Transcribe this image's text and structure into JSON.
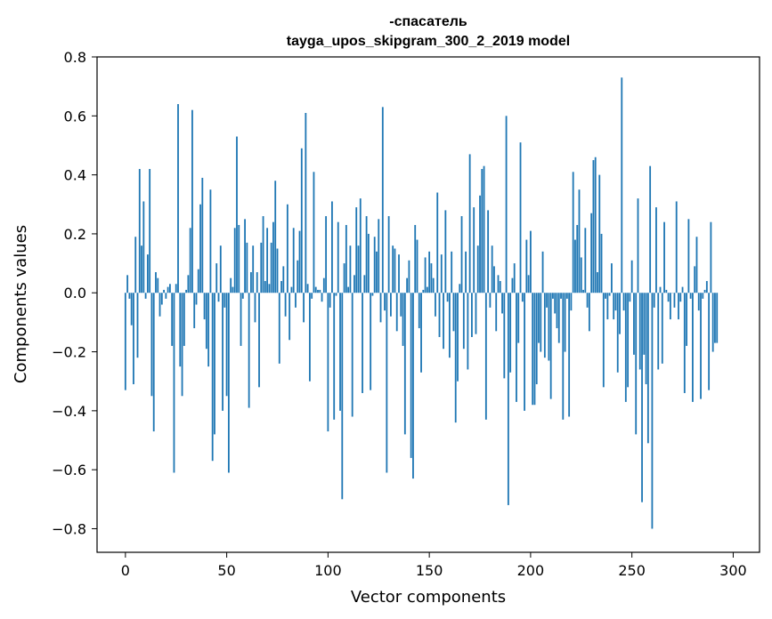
{
  "chart_data": {
    "type": "bar",
    "title": "-спасатель",
    "subtitle": "tayga_upos_skipgram_300_2_2019 model",
    "xlabel": "Vector components",
    "ylabel": "Components values",
    "xlim": [
      -14,
      313
    ],
    "ylim": [
      -0.88,
      0.8
    ],
    "xticks": [
      0,
      50,
      100,
      150,
      200,
      250,
      300
    ],
    "xtick_labels": [
      "0",
      "50",
      "100",
      "150",
      "200",
      "250",
      "300"
    ],
    "yticks": [
      -0.8,
      -0.6,
      -0.4,
      -0.2,
      0.0,
      0.2,
      0.4,
      0.6,
      0.8
    ],
    "ytick_labels": [
      "−0.8",
      "−0.6",
      "−0.4",
      "−0.2",
      "0.0",
      "0.2",
      "0.4",
      "0.6",
      "0.8"
    ],
    "bar_color": "#1f77b4",
    "grid": false,
    "values": [
      -0.33,
      0.06,
      -0.02,
      -0.11,
      -0.31,
      0.19,
      -0.22,
      0.42,
      0.16,
      0.31,
      -0.02,
      0.13,
      0.42,
      -0.35,
      -0.47,
      0.07,
      0.05,
      -0.08,
      -0.04,
      0.01,
      -0.02,
      0.02,
      0.03,
      -0.18,
      -0.61,
      0.03,
      0.64,
      -0.25,
      -0.35,
      -0.18,
      0.01,
      0.06,
      0.22,
      0.62,
      -0.12,
      -0.04,
      0.08,
      0.3,
      0.39,
      -0.09,
      -0.19,
      -0.25,
      0.35,
      -0.57,
      -0.48,
      0.1,
      -0.03,
      0.16,
      -0.4,
      -0.05,
      -0.35,
      -0.61,
      0.05,
      0.02,
      0.22,
      0.53,
      0.23,
      -0.18,
      -0.02,
      0.25,
      0.17,
      -0.39,
      0.07,
      0.16,
      -0.1,
      0.07,
      -0.32,
      0.17,
      0.26,
      0.04,
      0.22,
      0.03,
      0.17,
      0.24,
      0.38,
      0.15,
      -0.24,
      0.04,
      0.09,
      -0.08,
      0.3,
      -0.16,
      0.02,
      0.22,
      -0.05,
      0.11,
      0.21,
      0.49,
      -0.1,
      0.61,
      0.03,
      -0.3,
      -0.02,
      0.41,
      0.02,
      0.01,
      0.01,
      -0.03,
      0.05,
      0.26,
      -0.47,
      -0.05,
      0.31,
      -0.43,
      -0.01,
      0.24,
      -0.4,
      -0.7,
      0.1,
      0.23,
      0.02,
      0.16,
      -0.42,
      0.06,
      0.29,
      0.16,
      0.32,
      -0.34,
      0.06,
      0.26,
      0.2,
      -0.33,
      -0.01,
      0.19,
      0.14,
      0.25,
      -0.1,
      0.63,
      -0.06,
      -0.61,
      0.26,
      -0.08,
      0.16,
      0.15,
      -0.13,
      0.13,
      -0.08,
      -0.18,
      -0.48,
      0.05,
      0.11,
      -0.56,
      -0.63,
      0.23,
      0.18,
      -0.12,
      -0.27,
      0.01,
      0.12,
      0.02,
      0.14,
      0.1,
      0.05,
      -0.08,
      0.34,
      -0.15,
      0.13,
      -0.19,
      0.28,
      -0.03,
      -0.22,
      0.14,
      -0.13,
      -0.44,
      -0.3,
      0.03,
      0.26,
      -0.19,
      0.14,
      -0.26,
      0.47,
      -0.15,
      0.29,
      -0.14,
      0.16,
      0.33,
      0.42,
      0.43,
      -0.43,
      0.28,
      -0.05,
      0.16,
      0.09,
      -0.13,
      0.06,
      0.04,
      -0.07,
      -0.29,
      0.6,
      -0.72,
      -0.27,
      0.05,
      0.1,
      -0.37,
      -0.17,
      0.51,
      -0.03,
      -0.4,
      0.18,
      0.06,
      0.21,
      -0.38,
      -0.38,
      -0.31,
      -0.17,
      -0.2,
      0.14,
      -0.22,
      -0.05,
      -0.23,
      -0.36,
      -0.02,
      -0.07,
      -0.12,
      -0.17,
      -0.02,
      -0.43,
      -0.2,
      -0.02,
      -0.42,
      -0.06,
      0.41,
      0.18,
      0.23,
      0.35,
      0.12,
      0.01,
      0.22,
      -0.05,
      -0.13,
      0.27,
      0.45,
      0.46,
      0.07,
      0.4,
      0.2,
      -0.32,
      -0.02,
      -0.09,
      -0.01,
      0.1,
      -0.09,
      -0.06,
      -0.27,
      -0.14,
      0.73,
      -0.06,
      -0.37,
      -0.32,
      -0.03,
      0.11,
      -0.21,
      -0.48,
      0.32,
      -0.26,
      -0.71,
      -0.21,
      -0.31,
      -0.51,
      0.43,
      -0.8,
      -0.05,
      0.29,
      -0.26,
      0.02,
      -0.24,
      0.24,
      0.01,
      -0.03,
      -0.09,
      0.0,
      -0.05,
      0.31,
      -0.09,
      -0.03,
      0.02,
      -0.34,
      -0.18,
      0.25,
      -0.02,
      -0.37,
      0.09,
      0.19,
      -0.06,
      -0.36,
      -0.02,
      0.01,
      0.04,
      -0.33,
      0.24,
      -0.2,
      -0.17,
      -0.17
    ]
  }
}
